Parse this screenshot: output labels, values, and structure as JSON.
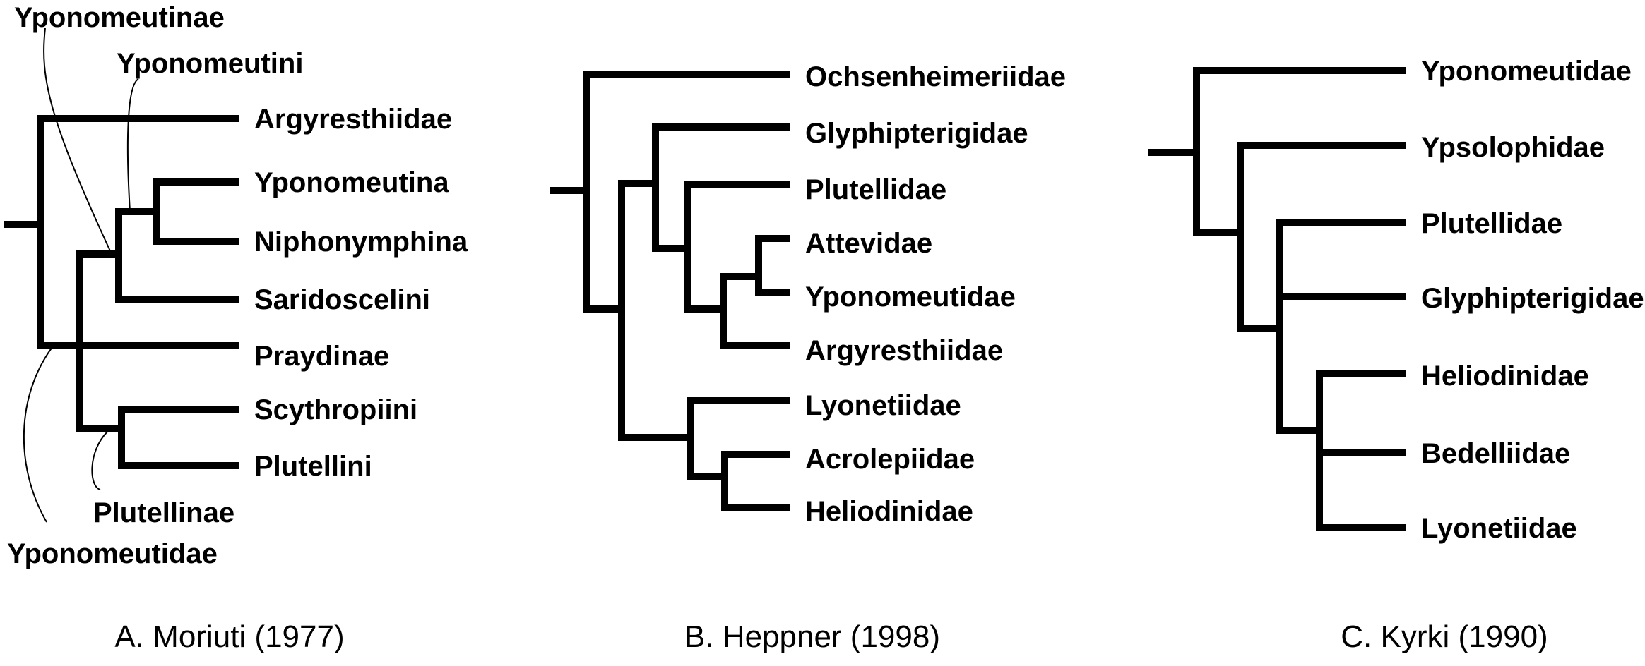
{
  "panels": [
    {
      "caption": "A. Moriuti (1977)",
      "taxa": [
        "Argyresthiidae",
        "Yponomeutina",
        "Niphonymphina",
        "Saridoscelini",
        "Praydinae",
        "Scythropiini",
        "Plutellini"
      ],
      "clade_labels": [
        "Yponomeutinae",
        "Yponomeutini",
        "Plutellinae",
        "Yponomeutidae"
      ]
    },
    {
      "caption": "B. Heppner (1998)",
      "taxa": [
        "Ochsenheimeriidae",
        "Glyphipterigidae",
        "Plutellidae",
        "Attevidae",
        "Yponomeutidae",
        "Argyresthiidae",
        "Lyonetiidae",
        "Acrolepiidae",
        "Heliodinidae"
      ]
    },
    {
      "caption": "C. Kyrki (1990)",
      "taxa": [
        "Yponomeutidae",
        "Ypsolophidae",
        "Plutellidae",
        "Glyphipterigidae",
        "Heliodinidae",
        "Bedelliidae",
        "Lyonetiidae"
      ]
    }
  ]
}
